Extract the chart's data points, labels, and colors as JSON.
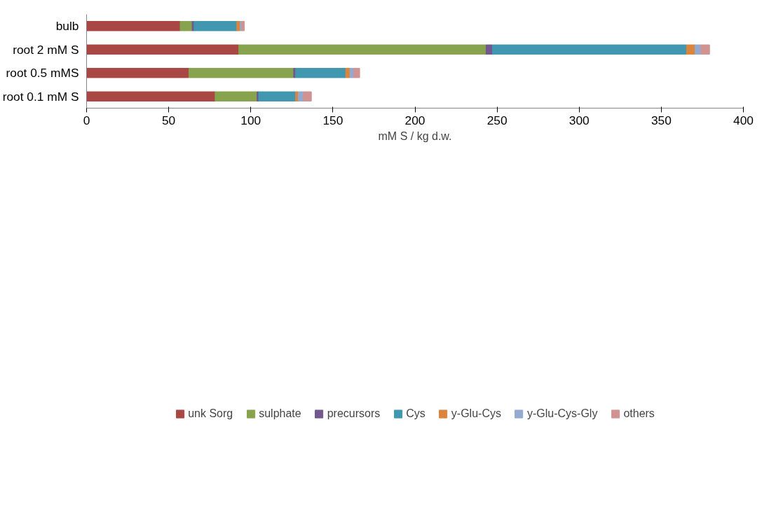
{
  "chart_data": {
    "type": "bar",
    "orientation": "horizontal",
    "stacked": true,
    "categories": [
      "bulb",
      "root 2 mM S",
      "root 0.5 mMS",
      "root 0.1 mM S"
    ],
    "xlabel": "mM S / kg d.w.",
    "xlim": [
      0,
      400
    ],
    "xticks": [
      0,
      50,
      100,
      150,
      200,
      250,
      300,
      350,
      400
    ],
    "grid": false,
    "legend": "bottom",
    "series": [
      {
        "name": "unk Sorg",
        "color": "#a94744",
        "values": [
          57.0,
          92.7,
          62.3,
          78.3
        ]
      },
      {
        "name": "sulphate",
        "color": "#87a34e",
        "values": [
          7.3,
          150.6,
          63.8,
          25.5
        ]
      },
      {
        "name": "precursors",
        "color": "#71588f",
        "values": [
          1.2,
          3.9,
          1.2,
          1.0
        ]
      },
      {
        "name": "Cys",
        "color": "#4197af",
        "values": [
          26.0,
          118.2,
          30.5,
          22.5
        ]
      },
      {
        "name": "y-Glu-Cys",
        "color": "#db843d",
        "values": [
          2.1,
          5.1,
          2.6,
          1.6
        ]
      },
      {
        "name": "y-Glu-Cys-Gly",
        "color": "#93a9d0",
        "values": [
          0.9,
          3.6,
          2.4,
          3.1
        ]
      },
      {
        "name": "others",
        "color": "#d09392",
        "values": [
          1.6,
          5.3,
          3.5,
          4.9
        ]
      }
    ]
  }
}
